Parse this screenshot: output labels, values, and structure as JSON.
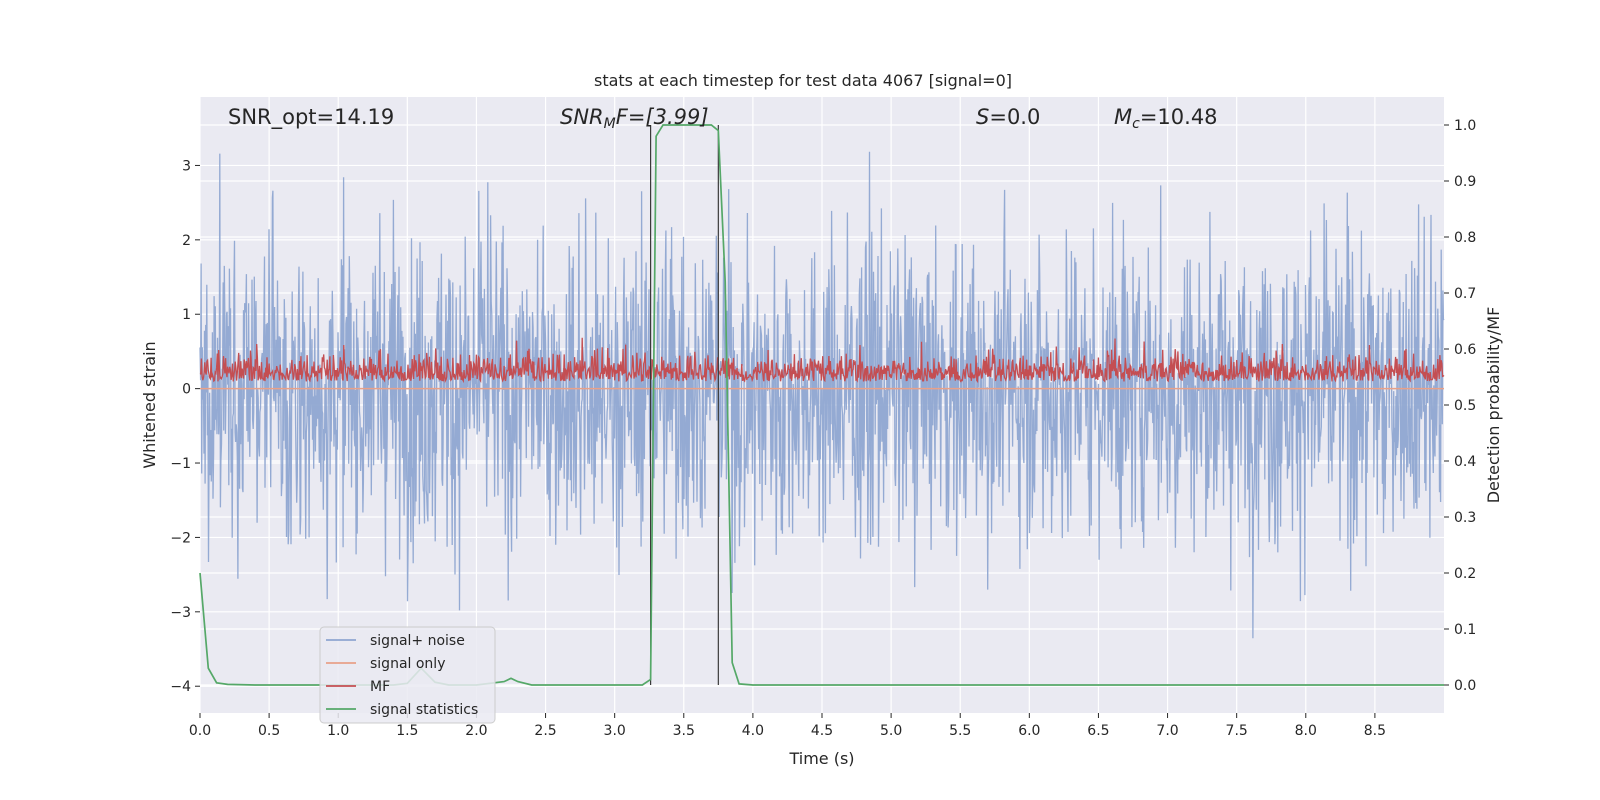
{
  "chart_data": {
    "type": "line",
    "title": "stats at each timestep for test data 4067 [signal=0]",
    "xlabel": "Time (s)",
    "ylabel_left": "Whitened strain",
    "ylabel_right": "Detection probability/MF",
    "xlim": [
      0.0,
      9.0
    ],
    "ylim_left": [
      -4.36,
      3.92
    ],
    "ylim_right": [
      -0.05,
      1.05
    ],
    "x_ticks": [
      "0.0",
      "0.5",
      "1.0",
      "1.5",
      "2.0",
      "2.5",
      "3.0",
      "3.5",
      "4.0",
      "4.5",
      "5.0",
      "5.5",
      "6.0",
      "6.5",
      "7.0",
      "7.5",
      "8.0",
      "8.5"
    ],
    "y_left_ticks": [
      "3",
      "2",
      "1",
      "0",
      "−1",
      "−2",
      "−3",
      "−4"
    ],
    "y_right_ticks": [
      "1.0",
      "0.9",
      "0.8",
      "0.7",
      "0.6",
      "0.5",
      "0.4",
      "0.3",
      "0.2",
      "0.1",
      "0.0"
    ],
    "grid": true,
    "legend_position": "lower-left",
    "annotations": {
      "snr_opt": "SNR_opt=14.19",
      "snr_mf_sym": "SNR",
      "snr_mf_sub": "M",
      "snr_mf_rest": "F=[3.99]",
      "s_sym": "S",
      "s_rest": "=0.0",
      "mc_sym": "M",
      "mc_sub": "c",
      "mc_rest": "=10.48"
    },
    "series": [
      {
        "name": "signal+ noise",
        "axis": "left",
        "color": "#8fa6d1",
        "description_range": [
          -3.9,
          3.6
        ],
        "sampled": true
      },
      {
        "name": "signal only",
        "axis": "left",
        "color": "#e8a189",
        "values_constant": 0.0
      },
      {
        "name": "MF",
        "axis": "right",
        "color": "#c44e52",
        "description_range": [
          0.53,
          0.62
        ],
        "sampled": true
      },
      {
        "name": "signal statistics",
        "axis": "right",
        "color": "#55a868",
        "x": [
          0.0,
          0.06,
          0.12,
          0.2,
          0.4,
          1.0,
          1.4,
          1.5,
          1.6,
          1.7,
          1.8,
          2.0,
          2.2,
          2.25,
          2.3,
          2.4,
          3.1,
          3.2,
          3.26,
          3.3,
          3.35,
          3.5,
          3.6,
          3.7,
          3.75,
          3.8,
          3.85,
          3.9,
          4.0,
          9.0
        ],
        "y": [
          0.2,
          0.03,
          0.004,
          0.001,
          0.0,
          0.0,
          0.0,
          0.003,
          0.03,
          0.005,
          0.0,
          0.0,
          0.006,
          0.012,
          0.006,
          0.0,
          0.0,
          0.0,
          0.01,
          0.98,
          1.0,
          1.0,
          1.0,
          1.0,
          0.99,
          0.72,
          0.04,
          0.002,
          0.0,
          0.0
        ]
      }
    ],
    "vlines": [
      {
        "x": 3.26,
        "ymin_right": 0.0,
        "ymax_right": 1.0
      },
      {
        "x": 3.75,
        "ymin_right": 0.0,
        "ymax_right": 1.0
      }
    ]
  }
}
